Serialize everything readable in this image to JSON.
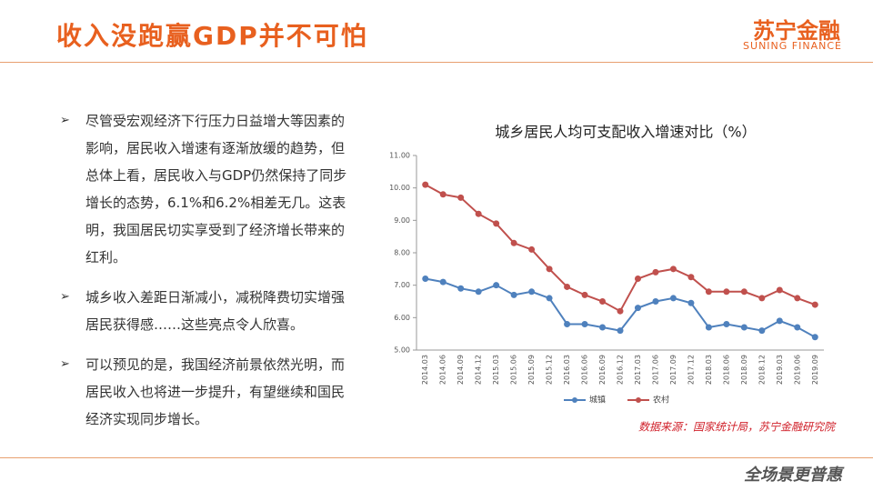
{
  "header": {
    "title": "收入没跑赢GDP并不可怕",
    "logo": "苏宁金融",
    "logo_sub": "SUNING FINANCE"
  },
  "bullets": [
    "尽管受宏观经济下行压力日益增大等因素的影响，居民收入增速有逐渐放缓的趋势，但总体上看，居民收入与GDP仍然保持了同步增长的态势，6.1%和6.2%相差无几。这表明，我国居民切实享受到了经济增长带来的红利。",
    "城乡收入差距日渐减小，减税降费切实增强居民获得感……这些亮点令人欣喜。",
    "可以预见的是，我国经济前景依然光明，而居民收入也将进一步提升，有望继续和国民经济实现同步增长。"
  ],
  "chart_data": {
    "type": "line",
    "title": "城乡居民人均可支配收入增速对比（%）",
    "categories": [
      "2014.03",
      "2014.06",
      "2014.09",
      "2014.12",
      "2015.03",
      "2015.06",
      "2015.09",
      "2015.12",
      "2016.03",
      "2016.06",
      "2016.09",
      "2016.12",
      "2017.03",
      "2017.06",
      "2017.09",
      "2017.12",
      "2018.03",
      "2018.06",
      "2018.09",
      "2018.12",
      "2019.03",
      "2019.06",
      "2019.09"
    ],
    "series": [
      {
        "name": "城镇",
        "color": "#4f81bd",
        "values": [
          7.2,
          7.1,
          6.9,
          6.8,
          7.0,
          6.7,
          6.8,
          6.6,
          5.8,
          5.8,
          5.7,
          5.6,
          6.3,
          6.5,
          6.6,
          6.45,
          5.7,
          5.8,
          5.7,
          5.6,
          5.9,
          5.7,
          5.4
        ]
      },
      {
        "name": "农村",
        "color": "#c0504d",
        "values": [
          10.1,
          9.8,
          9.7,
          9.2,
          8.9,
          8.3,
          8.1,
          7.5,
          6.95,
          6.7,
          6.5,
          6.2,
          7.2,
          7.4,
          7.5,
          7.25,
          6.8,
          6.8,
          6.8,
          6.6,
          6.85,
          6.6,
          6.4
        ]
      }
    ],
    "ylim": [
      5,
      11
    ],
    "yticks": [
      {
        "value": 5,
        "label": "5.00"
      },
      {
        "value": 6,
        "label": "6.00"
      },
      {
        "value": 7,
        "label": "7.00"
      },
      {
        "value": 8,
        "label": "8.00"
      },
      {
        "value": 9,
        "label": "9.00"
      },
      {
        "value": 10,
        "label": "10.00"
      },
      {
        "value": 11,
        "label": "11.00"
      }
    ],
    "legend": "bottom",
    "source": "数据来源：国家统计局，苏宁金融研究院"
  },
  "footer": "全场景更普惠"
}
